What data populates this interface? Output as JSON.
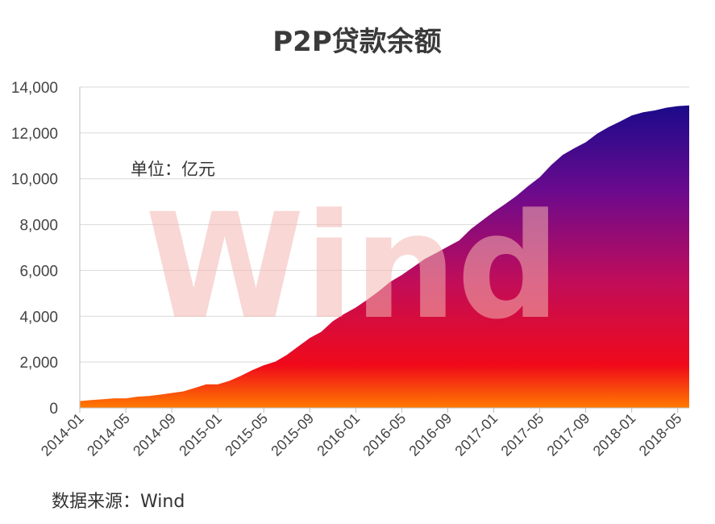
{
  "chart_data": {
    "type": "area",
    "title": "P2P贷款余额",
    "unit_note": "单位：亿元",
    "source": "数据来源：Wind",
    "watermark": "Wind",
    "ylim": [
      0,
      14000
    ],
    "y_ticks": [
      0,
      2000,
      4000,
      6000,
      8000,
      10000,
      12000,
      14000
    ],
    "y_tick_labels": [
      "0",
      "2,000",
      "4,000",
      "6,000",
      "8,000",
      "10,000",
      "12,000",
      "14,000"
    ],
    "x_tick_labels": [
      "2014-01",
      "2014-05",
      "2014-09",
      "2015-01",
      "2015-05",
      "2015-09",
      "2016-01",
      "2016-05",
      "2016-09",
      "2017-01",
      "2017-05",
      "2017-09",
      "2018-01",
      "2018-05"
    ],
    "grid": true,
    "gradient_colors": [
      "#1a0a8a",
      "#6a0a8e",
      "#c00d5a",
      "#f00a1a",
      "#ff7a00"
    ],
    "x": [
      "2014-01",
      "2014-02",
      "2014-03",
      "2014-04",
      "2014-05",
      "2014-06",
      "2014-07",
      "2014-08",
      "2014-09",
      "2014-10",
      "2014-11",
      "2014-12",
      "2015-01",
      "2015-02",
      "2015-03",
      "2015-04",
      "2015-05",
      "2015-06",
      "2015-07",
      "2015-08",
      "2015-09",
      "2015-10",
      "2015-11",
      "2015-12",
      "2016-01",
      "2016-02",
      "2016-03",
      "2016-04",
      "2016-05",
      "2016-06",
      "2016-07",
      "2016-08",
      "2016-09",
      "2016-10",
      "2016-11",
      "2016-12",
      "2017-01",
      "2017-02",
      "2017-03",
      "2017-04",
      "2017-05",
      "2017-06",
      "2017-07",
      "2017-08",
      "2017-09",
      "2017-10",
      "2017-11",
      "2017-12",
      "2018-01",
      "2018-02",
      "2018-03",
      "2018-04",
      "2018-05",
      "2018-06"
    ],
    "values": [
      300,
      340,
      380,
      420,
      420,
      490,
      520,
      580,
      650,
      720,
      870,
      1030,
      1030,
      1180,
      1400,
      1650,
      1860,
      2020,
      2310,
      2680,
      3050,
      3320,
      3780,
      4100,
      4380,
      4720,
      5090,
      5500,
      5800,
      6150,
      6500,
      6760,
      7040,
      7310,
      7800,
      8180,
      8560,
      8900,
      9260,
      9680,
      10070,
      10600,
      11040,
      11330,
      11590,
      11970,
      12260,
      12500,
      12760,
      12900,
      12980,
      13100,
      13170,
      13200
    ]
  }
}
